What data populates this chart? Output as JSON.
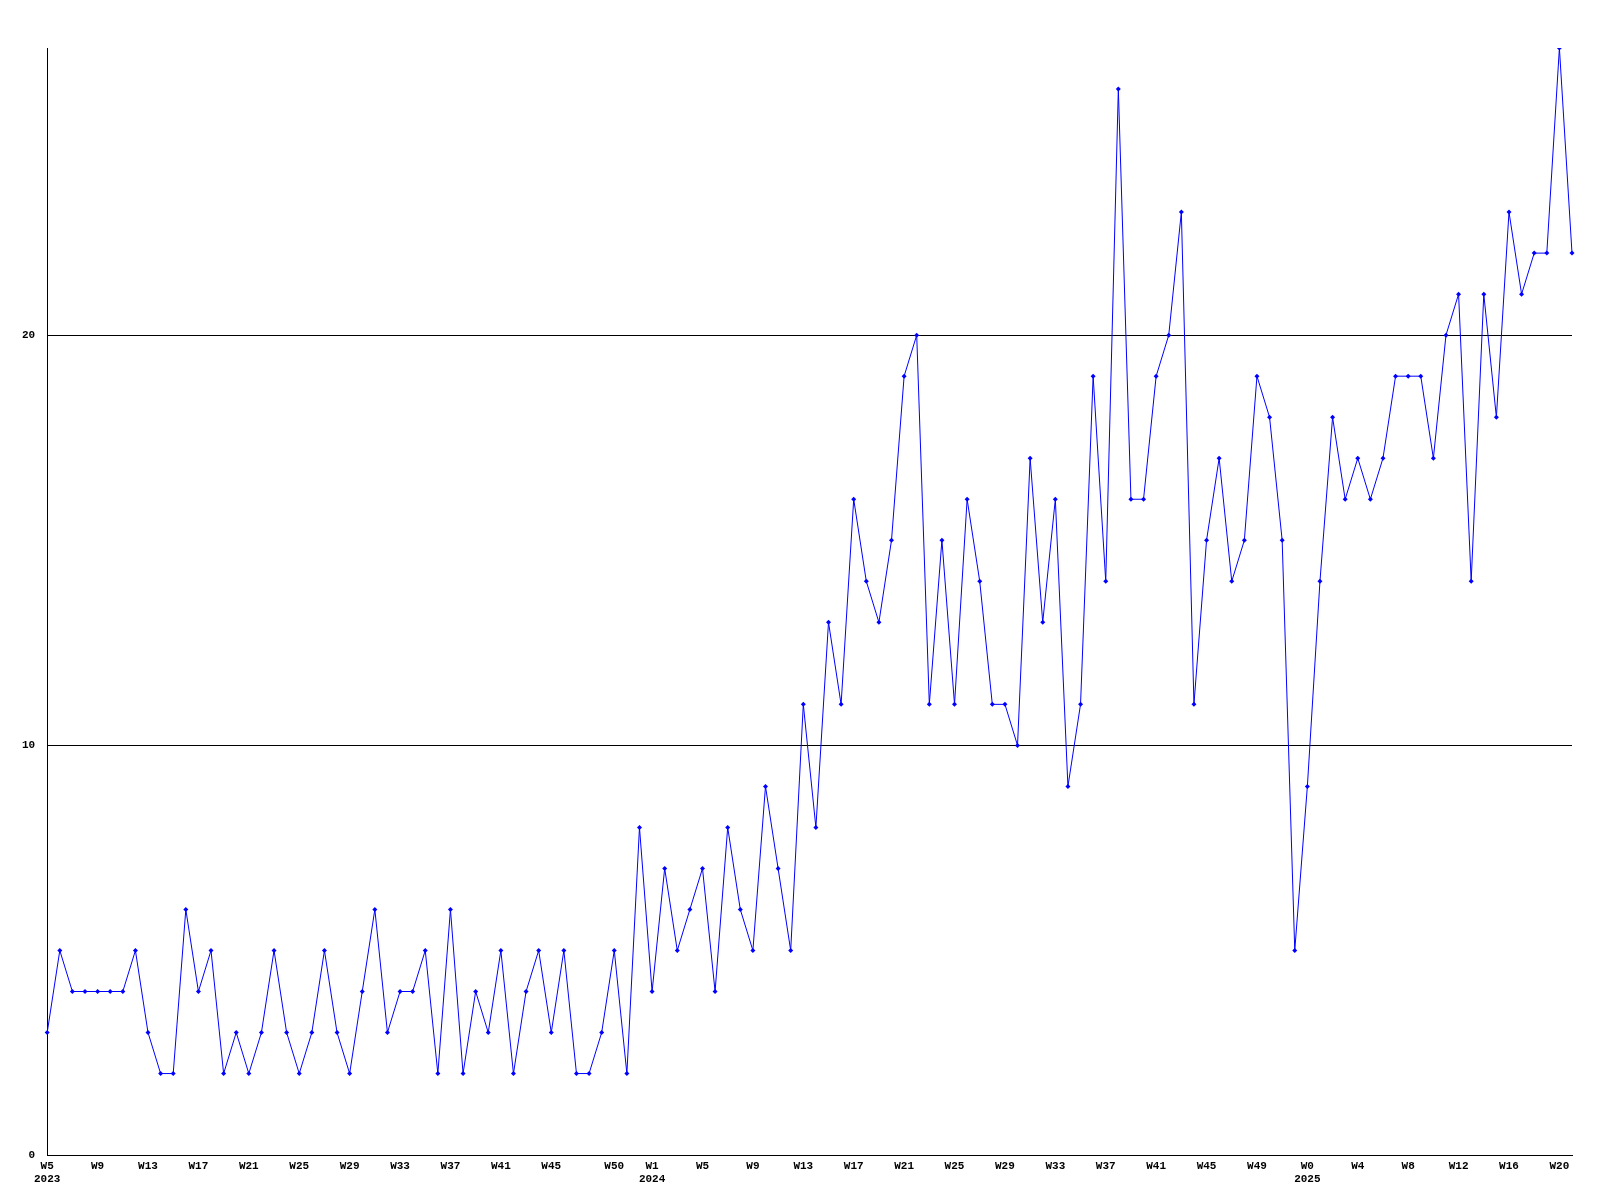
{
  "chart_data": {
    "type": "line",
    "categories": [
      "W5\n2023",
      null,
      null,
      null,
      "W9",
      null,
      null,
      null,
      "W13",
      null,
      null,
      null,
      "W17",
      null,
      null,
      null,
      "W21",
      null,
      null,
      null,
      "W25",
      null,
      null,
      null,
      "W29",
      null,
      null,
      null,
      "W33",
      null,
      null,
      null,
      "W37",
      null,
      null,
      null,
      "W41",
      null,
      null,
      null,
      "W45",
      null,
      null,
      null,
      null,
      "W50",
      null,
      null,
      "W1\n2024",
      null,
      null,
      null,
      "W5",
      null,
      null,
      null,
      "W9",
      null,
      null,
      null,
      "W13",
      null,
      null,
      null,
      "W17",
      null,
      null,
      null,
      "W21",
      null,
      null,
      null,
      "W25",
      null,
      null,
      null,
      "W29",
      null,
      null,
      null,
      "W33",
      null,
      null,
      null,
      "W37",
      null,
      null,
      null,
      "W41",
      null,
      null,
      null,
      "W45",
      null,
      null,
      null,
      "W49",
      null,
      null,
      null,
      "W0\n2025",
      null,
      null,
      null,
      "W4",
      null,
      null,
      null,
      "W8",
      null,
      null,
      null,
      "W12",
      null,
      null,
      null,
      "W16",
      null,
      null,
      null,
      "W20",
      null
    ],
    "series": [
      {
        "color": "#0000ff",
        "values": [
          3,
          5,
          4,
          4,
          4,
          4,
          4,
          5,
          3,
          2,
          2,
          6,
          4,
          5,
          2,
          3,
          2,
          3,
          5,
          3,
          2,
          3,
          5,
          3,
          2,
          4,
          6,
          3,
          4,
          4,
          5,
          2,
          6,
          2,
          4,
          3,
          5,
          2,
          4,
          5,
          3,
          5,
          2,
          2,
          3,
          5,
          2,
          8,
          4,
          7,
          5,
          6,
          7,
          4,
          8,
          6,
          5,
          9,
          7,
          5,
          11,
          8,
          13,
          11,
          16,
          14,
          13,
          15,
          19,
          20,
          11,
          15,
          11,
          16,
          14,
          11,
          11,
          10,
          17,
          13,
          16,
          9,
          11,
          19,
          14,
          26,
          16,
          16,
          19,
          20,
          23,
          11,
          15,
          17,
          14,
          15,
          19,
          18,
          15,
          5,
          9,
          14,
          18,
          16,
          17,
          16,
          17,
          19,
          19,
          19,
          17,
          20,
          21,
          14,
          21,
          18,
          23,
          21,
          22,
          22,
          27,
          22
        ]
      }
    ],
    "ylim": [
      0,
      27
    ],
    "yticks": [
      0,
      10,
      20
    ],
    "grid": "y",
    "legend": false,
    "marker": "diamond",
    "line_style": "solid"
  }
}
